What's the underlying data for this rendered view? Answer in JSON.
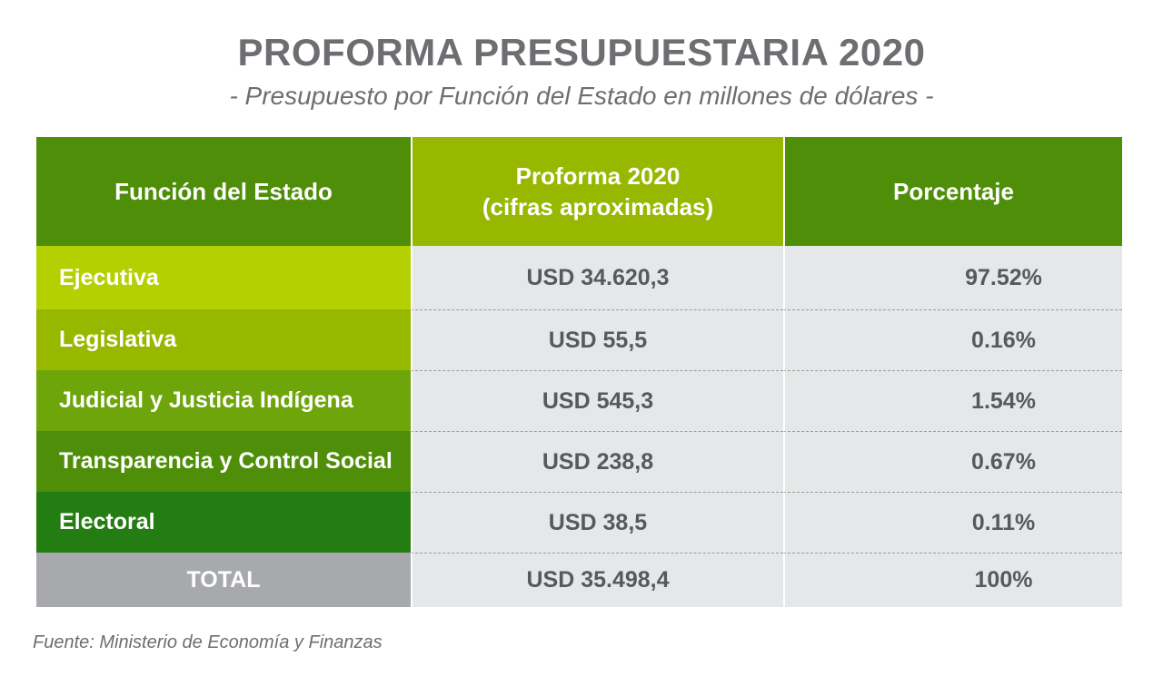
{
  "title": "PROFORMA PRESUPUESTARIA 2020",
  "subtitle": "- Presupuesto por Función del Estado en millones de dólares -",
  "source": "Fuente: Ministerio de Economía y Finanzas",
  "colors": {
    "header_dark_green": "#4f8e08",
    "header_light_green": "#98b800",
    "row_ejecutiva": "#b5d000",
    "row_legislativa": "#98b800",
    "row_judicial": "#6da50b",
    "row_transparencia": "#4f8e08",
    "row_electoral": "#237d12",
    "row_total": "#a7a9ac",
    "value_cell_bg": "#e6e7e8",
    "text_grey": "#58595b"
  },
  "chart_data": {
    "type": "table",
    "title": "PROFORMA PRESUPUESTARIA 2020",
    "subtitle": "- Presupuesto por Función del Estado en millones de dólares -",
    "columns": [
      "Función del Estado",
      "Proforma 2020",
      "(cifras aproximadas)",
      "Porcentaje"
    ],
    "rows": [
      {
        "funcion": "Ejecutiva",
        "proforma": "USD 34.620,3",
        "porcentaje": "97.52%"
      },
      {
        "funcion": "Legislativa",
        "proforma": "USD 55,5",
        "porcentaje": "0.16%"
      },
      {
        "funcion": "Judicial y Justicia Indígena",
        "proforma": "USD 545,3",
        "porcentaje": "1.54%"
      },
      {
        "funcion": "Transparencia y Control Social",
        "proforma": "USD 238,8",
        "porcentaje": "0.67%"
      },
      {
        "funcion": "Electoral",
        "proforma": "USD 38,5",
        "porcentaje": "0.11%"
      }
    ],
    "total": {
      "funcion": "TOTAL",
      "proforma": "USD 35.498,4",
      "porcentaje": "100%"
    },
    "values_musd": [
      34620.3,
      55.5,
      545.3,
      238.8,
      38.5
    ],
    "percentages": [
      97.52,
      0.16,
      1.54,
      0.67,
      0.11
    ],
    "total_value_musd": 35498.4
  }
}
